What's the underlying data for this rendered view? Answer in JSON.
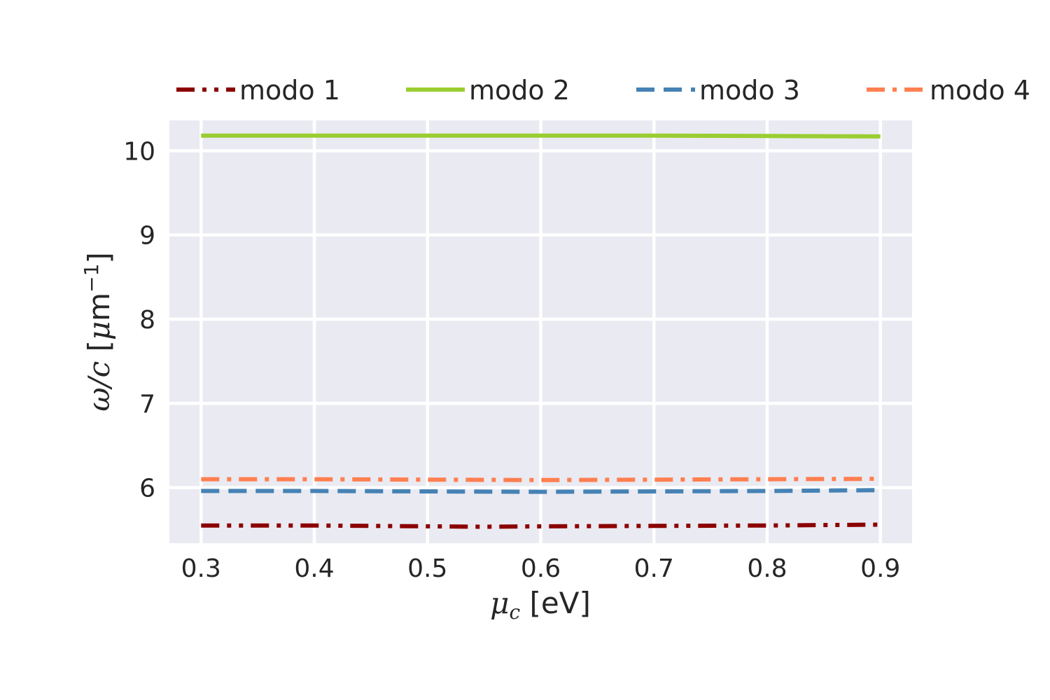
{
  "chart_data": {
    "type": "line",
    "xlabel": {
      "symbol": "μ",
      "sub": "c",
      "unit": " [eV]"
    },
    "ylabel": {
      "symbol": "ω/c",
      "unit_open": " [",
      "mu": "μ",
      "unit_body": "m",
      "sup": "−1",
      "unit_close": "]"
    },
    "xlim": [
      0.272,
      0.928
    ],
    "ylim": [
      5.34,
      10.36
    ],
    "xticks": [
      "0.3",
      "0.4",
      "0.5",
      "0.6",
      "0.7",
      "0.8",
      "0.9"
    ],
    "yticks": [
      "6",
      "7",
      "8",
      "9",
      "10"
    ],
    "grid": true,
    "legend_position": "top",
    "series": [
      {
        "name": "modo 1",
        "color": "#8b0000",
        "style": "dashdotdot",
        "x": [
          0.3,
          0.4,
          0.5,
          0.55,
          0.6,
          0.7,
          0.8,
          0.9
        ],
        "y": [
          5.55,
          5.55,
          5.54,
          5.535,
          5.54,
          5.545,
          5.55,
          5.56
        ]
      },
      {
        "name": "modo 2",
        "color": "#9acd32",
        "style": "solid",
        "x": [
          0.3,
          0.4,
          0.5,
          0.6,
          0.7,
          0.8,
          0.9
        ],
        "y": [
          10.18,
          10.18,
          10.18,
          10.18,
          10.18,
          10.175,
          10.17
        ]
      },
      {
        "name": "modo 3",
        "color": "#4682b4",
        "style": "dashed",
        "x": [
          0.3,
          0.4,
          0.5,
          0.6,
          0.7,
          0.8,
          0.9
        ],
        "y": [
          5.96,
          5.96,
          5.955,
          5.95,
          5.955,
          5.96,
          5.97
        ]
      },
      {
        "name": "modo 4",
        "color": "#ff7f50",
        "style": "dashdot",
        "x": [
          0.3,
          0.4,
          0.5,
          0.6,
          0.7,
          0.8,
          0.9
        ],
        "y": [
          6.1,
          6.1,
          6.095,
          6.09,
          6.095,
          6.1,
          6.105
        ]
      }
    ]
  }
}
